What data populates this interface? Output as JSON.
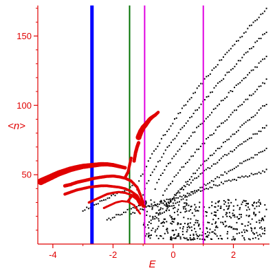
{
  "chart_data": {
    "type": "scatter",
    "title": "",
    "xlabel": "E",
    "ylabel": "<n>",
    "xlim": [
      -4.5,
      3.2
    ],
    "ylim": [
      0,
      172
    ],
    "grid": false,
    "x_ticks": [
      -4,
      -2,
      0,
      2
    ],
    "y_ticks": [
      50,
      100,
      150
    ],
    "x_tick_labels": [
      "-4",
      "-2",
      "0",
      "2"
    ],
    "y_tick_labels": [
      "50",
      "100",
      "150"
    ],
    "colors": {
      "axis": "#e00000",
      "highlight_points": "#e00000",
      "points": "#000000",
      "line_blue": "#0000ff",
      "line_green": "#007000",
      "line_magenta": "#e000e0"
    },
    "vertical_lines": [
      {
        "x": -2.7,
        "color": "#0000ff",
        "width": 5
      },
      {
        "x": -1.45,
        "color": "#007000",
        "width": 2
      },
      {
        "x": -0.95,
        "color": "#e000e0",
        "width": 2
      },
      {
        "x": 1.0,
        "color": "#e000e0",
        "width": 2
      }
    ],
    "highlight_curves": [
      {
        "points": [
          [
            -4.4,
            45
          ],
          [
            -4.2,
            47
          ],
          [
            -4.0,
            49
          ],
          [
            -3.8,
            51
          ],
          [
            -3.6,
            52.5
          ],
          [
            -3.4,
            54
          ],
          [
            -3.2,
            55
          ],
          [
            -3.0,
            56
          ],
          [
            -2.8,
            56.5
          ],
          [
            -2.6,
            57
          ],
          [
            -2.4,
            57.5
          ],
          [
            -2.2,
            57.5
          ],
          [
            -2.0,
            57
          ],
          [
            -1.8,
            56
          ],
          [
            -1.6,
            55
          ]
        ],
        "size_start": 5,
        "size_end": 2.6
      },
      {
        "points": [
          [
            -3.6,
            42
          ],
          [
            -3.4,
            43
          ],
          [
            -3.2,
            44.5
          ],
          [
            -3.0,
            45.5
          ],
          [
            -2.8,
            46.5
          ],
          [
            -2.6,
            47.5
          ],
          [
            -2.4,
            48.2
          ],
          [
            -2.2,
            48.8
          ],
          [
            -2.0,
            49
          ],
          [
            -1.8,
            48.5
          ],
          [
            -1.6,
            47.5
          ],
          [
            -1.4,
            45.5
          ],
          [
            -1.2,
            41
          ],
          [
            -1.1,
            36
          ],
          [
            -1.0,
            30
          ]
        ],
        "size_start": 2.6,
        "size_end": 2.0
      },
      {
        "points": [
          [
            -3.6,
            36
          ],
          [
            -3.4,
            37.5
          ],
          [
            -3.2,
            39
          ],
          [
            -3.0,
            40
          ],
          [
            -2.8,
            41
          ],
          [
            -2.6,
            41.5
          ],
          [
            -2.4,
            42
          ],
          [
            -2.2,
            42
          ],
          [
            -2.0,
            41.5
          ],
          [
            -1.8,
            41
          ],
          [
            -1.6,
            40
          ],
          [
            -1.4,
            38
          ],
          [
            -1.2,
            35
          ],
          [
            -1.1,
            31
          ],
          [
            -1.0,
            27
          ]
        ],
        "size_start": 2.2,
        "size_end": 1.8
      },
      {
        "points": [
          [
            -2.8,
            30
          ],
          [
            -2.6,
            32
          ],
          [
            -2.4,
            34
          ],
          [
            -2.2,
            36
          ],
          [
            -2.0,
            37
          ],
          [
            -1.8,
            37.5
          ],
          [
            -1.6,
            37
          ],
          [
            -1.4,
            35.5
          ],
          [
            -1.2,
            32
          ],
          [
            -1.1,
            28
          ]
        ],
        "size_start": 1.8,
        "size_end": 1.6
      },
      {
        "points": [
          [
            -2.3,
            26
          ],
          [
            -2.1,
            28
          ],
          [
            -1.9,
            30
          ],
          [
            -1.7,
            31
          ],
          [
            -1.5,
            30.5
          ],
          [
            -1.3,
            28
          ],
          [
            -1.2,
            25
          ],
          [
            -1.1,
            22
          ]
        ],
        "size_start": 1.6,
        "size_end": 1.4
      },
      {
        "points": [
          [
            -1.15,
            77
          ],
          [
            -1.08,
            81
          ],
          [
            -1.0,
            84
          ],
          [
            -0.92,
            86
          ],
          [
            -0.85,
            88
          ],
          [
            -0.78,
            90
          ],
          [
            -0.7,
            91.5
          ],
          [
            -0.6,
            93
          ],
          [
            -0.5,
            95
          ]
        ],
        "size_start": 4.2,
        "size_end": 2.2
      },
      {
        "points": [
          [
            -1.3,
            60
          ],
          [
            -1.25,
            66
          ],
          [
            -1.2,
            70
          ],
          [
            -1.15,
            73
          ]
        ],
        "size_start": 2.6,
        "size_end": 2.6
      },
      {
        "points": [
          [
            -1.6,
            48
          ],
          [
            -1.5,
            52
          ],
          [
            -1.45,
            57
          ],
          [
            -1.4,
            62
          ]
        ],
        "size_start": 2.2,
        "size_end": 2.2
      },
      {
        "points": [
          [
            -1.5,
            31
          ],
          [
            -1.4,
            34
          ],
          [
            -1.3,
            36
          ],
          [
            -1.2,
            33
          ],
          [
            -1.05,
            30
          ],
          [
            -0.95,
            27
          ]
        ],
        "size_start": 1.8,
        "size_end": 1.6
      }
    ],
    "point_branches": [
      {
        "x": [
          -1.2,
          3.1
        ],
        "y": [
          40,
          170
        ],
        "power": 0.78
      },
      {
        "x": [
          -1.0,
          3.1
        ],
        "y": [
          36,
          153
        ],
        "power": 0.78
      },
      {
        "x": [
          -0.6,
          3.1
        ],
        "y": [
          40,
          135
        ],
        "power": 0.8
      },
      {
        "x": [
          -0.4,
          3.1
        ],
        "y": [
          32,
          118
        ],
        "power": 0.82
      },
      {
        "x": [
          -0.2,
          3.1
        ],
        "y": [
          26,
          101
        ],
        "power": 0.84
      },
      {
        "x": [
          -0.6,
          3.1
        ],
        "y": [
          20,
          85
        ],
        "power": 0.86
      },
      {
        "x": [
          -0.8,
          3.1
        ],
        "y": [
          15,
          68
        ],
        "power": 0.88
      },
      {
        "x": [
          -1.4,
          3.1
        ],
        "y": [
          22,
          53
        ],
        "power": 0.9
      },
      {
        "x": [
          -3.0,
          -1.3
        ],
        "y": [
          24,
          42
        ],
        "power": 0.95
      },
      {
        "x": [
          -2.2,
          -0.9
        ],
        "y": [
          17,
          30
        ],
        "power": 0.95
      }
    ],
    "point_cluster": {
      "x": [
        -1.0,
        3.1
      ],
      "y": [
        3,
        32
      ],
      "count": 420
    },
    "axis_text_color": "#e00000"
  }
}
